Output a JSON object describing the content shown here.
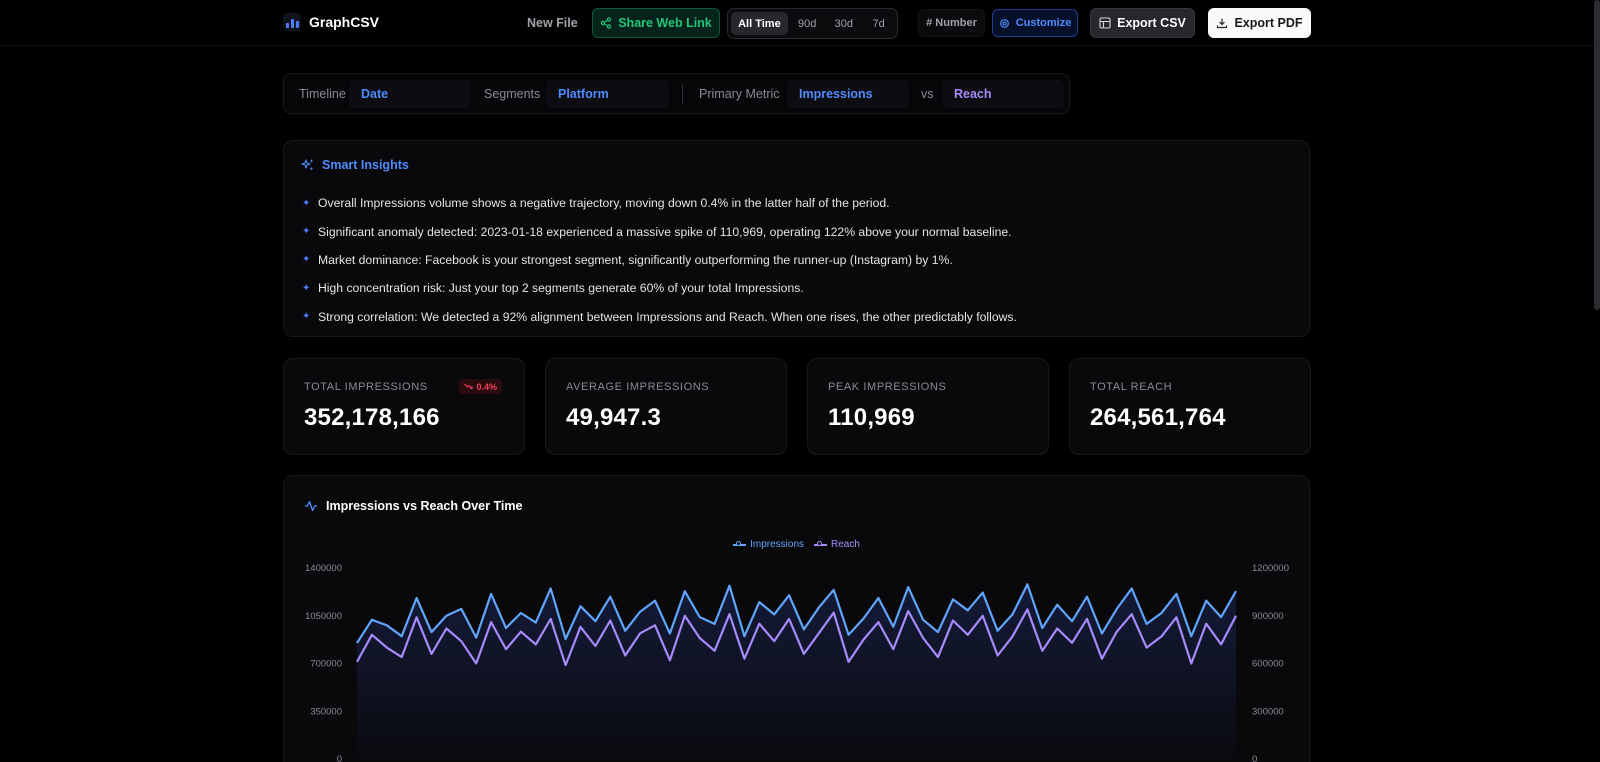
{
  "app": {
    "name": "GraphCSV"
  },
  "header": {
    "new_file": "New File",
    "share": "Share Web Link",
    "ranges": [
      "All Time",
      "90d",
      "30d",
      "7d"
    ],
    "active_range": "All Time",
    "number_format": "# Number",
    "customize": "Customize",
    "export_csv": "Export CSV",
    "export_pdf": "Export PDF"
  },
  "selectors": {
    "timeline_label": "Timeline",
    "timeline_value": "Date",
    "segments_label": "Segments",
    "segments_value": "Platform",
    "primary_label": "Primary Metric",
    "primary_value": "Impressions",
    "vs_label": "vs",
    "secondary_value": "Reach"
  },
  "insights": {
    "title": "Smart Insights",
    "items": [
      "Overall Impressions volume shows a negative trajectory, moving down 0.4% in the latter half of the period.",
      "Significant anomaly detected: 2023-01-18 experienced a massive spike of 110,969, operating 122% above your normal baseline.",
      "Market dominance: Facebook is your strongest segment, significantly outperforming the runner-up (Instagram) by 1%.",
      "High concentration risk: Just your top 2 segments generate 60% of your total Impressions.",
      "Strong correlation: We detected a 92% alignment between Impressions and Reach. When one rises, the other predictably follows."
    ]
  },
  "stats": [
    {
      "label": "TOTAL IMPRESSIONS",
      "value": "352,178,166",
      "badge": "0.4%"
    },
    {
      "label": "AVERAGE IMPRESSIONS",
      "value": "49,947.3"
    },
    {
      "label": "PEAK IMPRESSIONS",
      "value": "110,969"
    },
    {
      "label": "TOTAL REACH",
      "value": "264,561,764"
    }
  ],
  "colors": {
    "accent": "#4f8bff",
    "impressions": "#60a5fa",
    "reach": "#a78bfa",
    "negative": "#f43f5e",
    "success": "#22c57a"
  },
  "chart_data": {
    "type": "line",
    "title": "Impressions vs Reach Over Time",
    "legend": [
      "Impressions",
      "Reach"
    ],
    "legend_position": "top-center",
    "y_left": {
      "ticks": [
        "1400000",
        "1050000",
        "700000",
        "350000",
        "0"
      ],
      "range": [
        0,
        1400000
      ]
    },
    "y_right": {
      "ticks": [
        "1200000",
        "900000",
        "600000",
        "300000",
        "0"
      ],
      "range": [
        0,
        1200000
      ]
    },
    "series": [
      {
        "name": "Impressions",
        "axis": "left",
        "color": "#60a5fa",
        "area_fill": true,
        "values": [
          850000,
          1020000,
          980000,
          900000,
          1180000,
          930000,
          1050000,
          1100000,
          890000,
          1210000,
          960000,
          1070000,
          1000000,
          1250000,
          880000,
          1120000,
          1010000,
          1190000,
          940000,
          1080000,
          1160000,
          920000,
          1230000,
          1040000,
          990000,
          1270000,
          900000,
          1150000,
          1060000,
          1200000,
          950000,
          1110000,
          1240000,
          910000,
          1030000,
          1180000,
          970000,
          1260000,
          1020000,
          930000,
          1170000,
          1090000,
          1220000,
          940000,
          1060000,
          1280000,
          960000,
          1130000,
          1010000,
          1190000,
          920000,
          1100000,
          1250000,
          990000,
          1070000,
          1210000,
          900000,
          1160000,
          1040000,
          1230000
        ]
      },
      {
        "name": "Reach",
        "axis": "right",
        "color": "#a78bfa",
        "values": [
          610000,
          780000,
          700000,
          640000,
          890000,
          660000,
          820000,
          740000,
          600000,
          860000,
          690000,
          800000,
          720000,
          880000,
          590000,
          830000,
          710000,
          870000,
          650000,
          790000,
          840000,
          620000,
          900000,
          760000,
          680000,
          910000,
          630000,
          850000,
          740000,
          880000,
          660000,
          790000,
          920000,
          610000,
          750000,
          860000,
          690000,
          930000,
          760000,
          640000,
          870000,
          780000,
          900000,
          650000,
          770000,
          940000,
          680000,
          820000,
          730000,
          880000,
          630000,
          800000,
          910000,
          700000,
          770000,
          890000,
          600000,
          850000,
          720000,
          900000
        ]
      }
    ]
  }
}
